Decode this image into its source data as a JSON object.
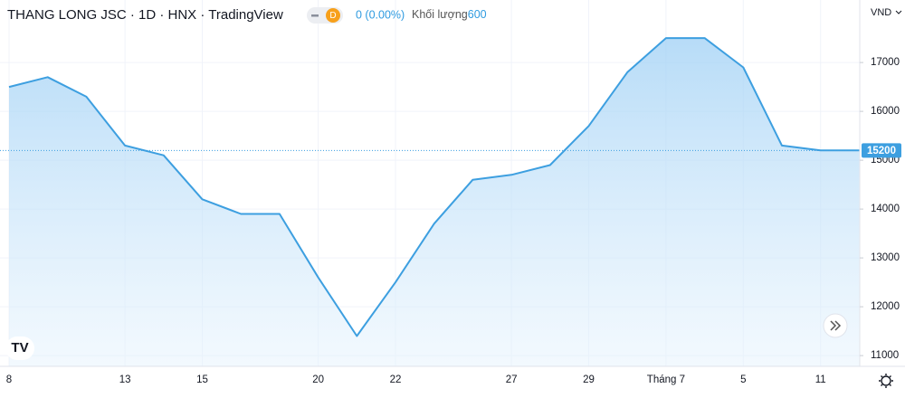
{
  "chart_data": {
    "type": "area",
    "title": "THANG LONG JSC · 1D · HNX · TradingView",
    "interval_badge": "D",
    "change": "0 (0.00%)",
    "volume_label": "Khối lượng",
    "volume": 600,
    "currency": "VND",
    "last_price": 15200,
    "color": "#3d9fe0",
    "grid": true,
    "categories": [
      "8",
      null,
      null,
      "13",
      null,
      "15",
      null,
      null,
      "20",
      null,
      "22",
      null,
      null,
      "27",
      null,
      "29",
      null,
      "Tháng 7",
      null,
      "5",
      null,
      "11",
      null
    ],
    "values": [
      16500,
      16700,
      16300,
      15300,
      15100,
      14200,
      13900,
      13900,
      12600,
      11400,
      12500,
      13700,
      14600,
      14700,
      14900,
      15700,
      16800,
      17500,
      17500,
      16900,
      15300,
      15200,
      15200
    ],
    "ylim": [
      10780,
      18280
    ],
    "yticks": [
      11000,
      12000,
      13000,
      14000,
      15000,
      16000,
      17000
    ]
  }
}
